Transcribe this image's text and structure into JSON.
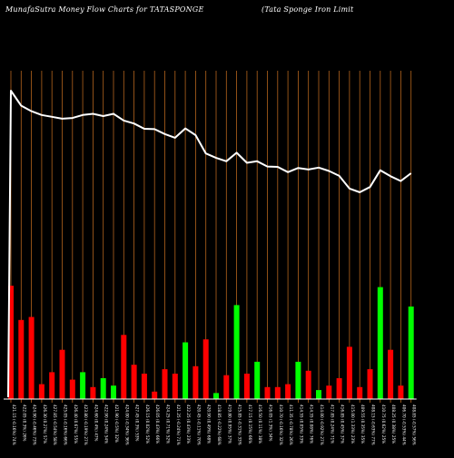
{
  "header": {
    "title": "MunafaSutra  Money Flow  Charts for TATASPONGE",
    "company": "(Tata  Sponge   Iron  Limit"
  },
  "colors": {
    "background": "#000000",
    "grid": "#b5651d",
    "price_line": "#ffffff",
    "up_bar": "#00ff00",
    "down_bar": "#ff0000",
    "baseline": "#ffffff",
    "label": "#ffffff"
  },
  "chart_data": {
    "type": "bar",
    "title": "MunafaSutra  Money Flow  Charts for TATASPONGE",
    "grid": true,
    "legend": "none",
    "price_line": [
      100,
      96,
      94.5,
      93.5,
      93,
      92.5,
      92.7,
      93.5,
      93.8,
      93.2,
      93.8,
      92,
      91.2,
      89.8,
      89.7,
      88.4,
      87.4,
      89.9,
      88.1,
      83.2,
      82,
      81.1,
      83.4,
      80.7,
      81.1,
      79.7,
      79.6,
      78.2,
      79.3,
      78.9,
      79.4,
      78.5,
      77.2,
      73.8,
      72.8,
      74.2,
      78.7,
      77.1,
      75.8,
      77.9
    ],
    "bars": [
      {
        "label": "421.15 (-0.16%) 74%",
        "value": 76,
        "direction": "down"
      },
      {
        "label": "422.05 (0.3%) 26%",
        "value": 53,
        "direction": "down"
      },
      {
        "label": "424.90 (-0.46%) 73%",
        "value": 55,
        "direction": "down"
      },
      {
        "label": "426.30 (0.27%) 57%",
        "value": 10,
        "direction": "down"
      },
      {
        "label": "427.85 (-0.54%) 58%",
        "value": 18,
        "direction": "down"
      },
      {
        "label": "425.05 (-0.16%) 66%",
        "value": 33,
        "direction": "down"
      },
      {
        "label": "426.40 (0.67%) 55%",
        "value": 13,
        "direction": "down"
      },
      {
        "label": "423.80 (-0.19%) 27%",
        "value": 18,
        "direction": "up"
      },
      {
        "label": "424.60 (0.4%) 47%",
        "value": 8,
        "direction": "down"
      },
      {
        "label": "422.90 (0.24%) 54%",
        "value": 14,
        "direction": "up"
      },
      {
        "label": "421.90 (-0.5%) 32%",
        "value": 9,
        "direction": "up"
      },
      {
        "label": "424.00 (-0.34%) 36%",
        "value": 43,
        "direction": "down"
      },
      {
        "label": "427.45 (0.3%) 53%",
        "value": 23,
        "direction": "down"
      },
      {
        "label": "426.15 (0.02%) 52%",
        "value": 17,
        "direction": "down"
      },
      {
        "label": "426.05 (0.43%) 66%",
        "value": 5,
        "direction": "down"
      },
      {
        "label": "424.25 (0.71%) 52%",
        "value": 20,
        "direction": "down"
      },
      {
        "label": "421.25 (-0.24%) 71%",
        "value": 17,
        "direction": "down"
      },
      {
        "label": "422.25 (0.43%) 23%",
        "value": 38,
        "direction": "up"
      },
      {
        "label": "420.45 (-0.11%) 70%",
        "value": 22,
        "direction": "down"
      },
      {
        "label": "420.90 (0.49%) 68%",
        "value": 40,
        "direction": "down"
      },
      {
        "label": "418.85 (-0.22%) 68%",
        "value": 4,
        "direction": "up"
      },
      {
        "label": "419.80 (0.95%) 37%",
        "value": 16,
        "direction": "down"
      },
      {
        "label": "415.85 (-0.31%) 33%",
        "value": 63,
        "direction": "up"
      },
      {
        "label": "417.15 (0.15%) 66%",
        "value": 17,
        "direction": "down"
      },
      {
        "label": "416.50 (0.11%) 38%",
        "value": 25,
        "direction": "up"
      },
      {
        "label": "416.05 (1.3%) 34%",
        "value": 8,
        "direction": "down"
      },
      {
        "label": "410.70 (-0.16%) 32%",
        "value": 8,
        "direction": "down"
      },
      {
        "label": "411.35 (-0.78%) 26%",
        "value": 10,
        "direction": "down"
      },
      {
        "label": "414.55 (0.05%) 33%",
        "value": 25,
        "direction": "up"
      },
      {
        "label": "414.35 (0.08%) 76%",
        "value": 19,
        "direction": "down"
      },
      {
        "label": "414.00 (-0.92%) 27%",
        "value": 6,
        "direction": "up"
      },
      {
        "label": "417.85 (0.24%) 71%",
        "value": 9,
        "direction": "down"
      },
      {
        "label": "416.85 (0.45%) 37%",
        "value": 14,
        "direction": "down"
      },
      {
        "label": "415.00 (1.33%) 23%",
        "value": 35,
        "direction": "down"
      },
      {
        "label": "409.55 (0.35%) 35%",
        "value": 8,
        "direction": "down"
      },
      {
        "label": "408.15 (-0.63%) 77%",
        "value": 20,
        "direction": "down"
      },
      {
        "label": "410.75 (0.62%) 25%",
        "value": 75,
        "direction": "up"
      },
      {
        "label": "408.25 (0.38%) 25%",
        "value": 33,
        "direction": "down"
      },
      {
        "label": "406.70 (-0.53%) 44%",
        "value": 9,
        "direction": "down"
      },
      {
        "label": "408.85 (-0.57%) 56%",
        "value": 62,
        "direction": "up"
      }
    ]
  }
}
